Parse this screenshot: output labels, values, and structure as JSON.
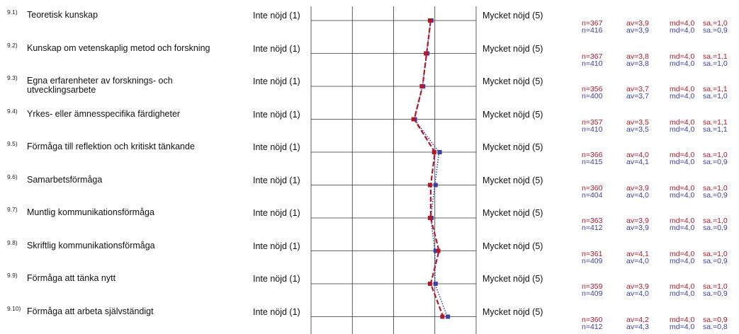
{
  "scale_low_label": "Inte nöjd (1)",
  "scale_high_label": "Mycket nöjd (5)",
  "colors": {
    "series_a": "#b2182b",
    "series_b": "#3b3fa8",
    "grid": "#333333"
  },
  "chart_data": {
    "type": "line",
    "orientation": "horizontal-profile",
    "xlim": [
      1,
      5
    ],
    "grid": true,
    "series": [
      {
        "color": "#b2182b",
        "style": "dashed",
        "values": [
          3.9,
          3.8,
          3.7,
          3.5,
          4.0,
          3.9,
          3.9,
          4.1,
          3.9,
          4.2
        ]
      },
      {
        "color": "#3b3fa8",
        "style": "dotted",
        "values": [
          3.9,
          3.8,
          3.7,
          3.5,
          4.1,
          4.0,
          3.9,
          4.0,
          4.0,
          4.3
        ]
      }
    ]
  },
  "items": [
    {
      "num": "9.1)",
      "label": "Teoretisk kunskap",
      "a": {
        "n": "n=367",
        "av": "av=3,9",
        "md": "md=4,0",
        "sa": "sa.=1,0"
      },
      "b": {
        "n": "n=416",
        "av": "av=3,9",
        "md": "md=4,0",
        "sa": "sa.=0,9"
      }
    },
    {
      "num": "9.2)",
      "label": "Kunskap om vetenskaplig metod och forskning",
      "a": {
        "n": "n=367",
        "av": "av=3,8",
        "md": "md=4,0",
        "sa": "sa.=1,1"
      },
      "b": {
        "n": "n=410",
        "av": "av=3,8",
        "md": "md=4,0",
        "sa": "sa.=1,0"
      }
    },
    {
      "num": "9.3)",
      "label": "Egna erfarenheter av forsknings- och utvecklingsarbete",
      "a": {
        "n": "n=356",
        "av": "av=3,7",
        "md": "md=4,0",
        "sa": "sa.=1,1"
      },
      "b": {
        "n": "n=400",
        "av": "av=3,7",
        "md": "md=4,0",
        "sa": "sa.=1,0"
      }
    },
    {
      "num": "9.4)",
      "label": "Yrkes- eller ämnesspecifika färdigheter",
      "a": {
        "n": "n=357",
        "av": "av=3,5",
        "md": "md=4,0",
        "sa": "sa.=1,1"
      },
      "b": {
        "n": "n=410",
        "av": "av=3,5",
        "md": "md=4,0",
        "sa": "sa.=1,1"
      }
    },
    {
      "num": "9.5)",
      "label": "Förmåga till reflektion och kritiskt tänkande",
      "a": {
        "n": "n=366",
        "av": "av=4,0",
        "md": "md=4,0",
        "sa": "sa.=1,0"
      },
      "b": {
        "n": "n=415",
        "av": "av=4,1",
        "md": "md=4,0",
        "sa": "sa.=0,9"
      }
    },
    {
      "num": "9.6)",
      "label": "Samarbetsförmåga",
      "a": {
        "n": "n=360",
        "av": "av=3,9",
        "md": "md=4,0",
        "sa": "sa.=1,0"
      },
      "b": {
        "n": "n=404",
        "av": "av=4,0",
        "md": "md=4,0",
        "sa": "sa.=0,9"
      }
    },
    {
      "num": "9.7)",
      "label": "Muntlig kommunikationsförmåga",
      "a": {
        "n": "n=363",
        "av": "av=3,9",
        "md": "md=4,0",
        "sa": "sa.=1,0"
      },
      "b": {
        "n": "n=412",
        "av": "av=3,9",
        "md": "md=4,0",
        "sa": "sa.=0,9"
      }
    },
    {
      "num": "9.8)",
      "label": "Skriftlig kommunikationsförmåga",
      "a": {
        "n": "n=361",
        "av": "av=4,1",
        "md": "md=4,0",
        "sa": "sa.=1,0"
      },
      "b": {
        "n": "n=409",
        "av": "av=4,0",
        "md": "md=4,0",
        "sa": "sa.=0,9"
      }
    },
    {
      "num": "9.9)",
      "label": "Förmåga att tänka nytt",
      "a": {
        "n": "n=359",
        "av": "av=3,9",
        "md": "md=4,0",
        "sa": "sa.=1,0"
      },
      "b": {
        "n": "n=409",
        "av": "av=4,0",
        "md": "md=4,0",
        "sa": "sa.=0,9"
      }
    },
    {
      "num": "9.10)",
      "label": "Förmåga att arbeta självständigt",
      "a": {
        "n": "n=360",
        "av": "av=4,2",
        "md": "md=4,0",
        "sa": "sa.=0,9"
      },
      "b": {
        "n": "n=412",
        "av": "av=4,3",
        "md": "md=4,0",
        "sa": "sa.=0,8"
      }
    }
  ]
}
